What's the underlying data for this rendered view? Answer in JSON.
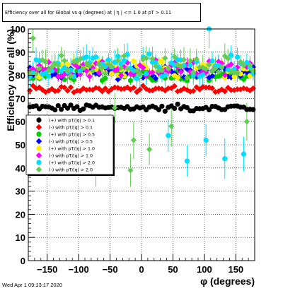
{
  "title": "Efficiency over all for Global vs φ (degrees) at | η | <= 1.0 at pT > 0.11",
  "date_stamp": "Wed Apr  1 09:13:17 2020",
  "chart_data": {
    "type": "scatter",
    "title": "Efficiency over all for Global vs φ (degrees) at | η | <= 1.0 at pT > 0.11",
    "xlabel": "φ (degrees)",
    "ylabel": "Efficiency over all (%)",
    "xlim": [
      -180,
      180
    ],
    "ylim": [
      0,
      100
    ],
    "x_ticks": [
      -150,
      -100,
      -50,
      0,
      50,
      100,
      150
    ],
    "y_ticks": [
      0,
      10,
      20,
      30,
      40,
      50,
      60,
      70,
      80,
      90,
      100
    ],
    "grid": true,
    "legend_position": "left-middle",
    "n_bins": 72,
    "series": [
      {
        "name": "(+) with pT/|q| > 0.1",
        "color": "#000000",
        "marker": "circle",
        "mean": 66,
        "spread": 1.2,
        "err": 0.7
      },
      {
        "name": "(-) with pT/|q| > 0.1",
        "color": "#ff0000",
        "marker": "diamond",
        "mean": 74,
        "spread": 1.2,
        "err": 0.7
      },
      {
        "name": "(+) with pT/|q| > 0.5",
        "color": "#00cc00",
        "marker": "circle",
        "mean": 80.5,
        "spread": 2.4,
        "err": 1.4
      },
      {
        "name": "(-) with pT/|q| > 0.5",
        "color": "#0000ff",
        "marker": "diamond",
        "mean": 81,
        "spread": 2.4,
        "err": 1.4
      },
      {
        "name": "(+) with pT/|q| > 1.0",
        "color": "#ffee00",
        "marker": "circle",
        "mean": 82.5,
        "spread": 3.2,
        "err": 2.2
      },
      {
        "name": "(-) with pT/|q| > 1.0",
        "color": "#ff00ff",
        "marker": "diamond",
        "mean": 83,
        "spread": 3.2,
        "err": 2.2
      },
      {
        "name": "(+) with pT/|q| > 2.0",
        "color": "#00ddff",
        "marker": "circle",
        "mean": 84,
        "spread": 4.5,
        "err": 4.0
      },
      {
        "name": "(-) with pT/|q| > 2.0",
        "color": "#66cc55",
        "marker": "diamond",
        "mean": 84,
        "spread": 4.5,
        "err": 4.0
      }
    ],
    "outliers": [
      {
        "series": 7,
        "x": -172.5,
        "y": 96
      },
      {
        "series": 7,
        "x": -72.5,
        "y": 38
      },
      {
        "series": 7,
        "x": -17.5,
        "y": 39
      },
      {
        "series": 7,
        "x": -12.5,
        "y": 52
      },
      {
        "series": 7,
        "x": -42.5,
        "y": 66
      },
      {
        "series": 6,
        "x": 72.5,
        "y": 43
      },
      {
        "series": 6,
        "x": 102.5,
        "y": 52
      },
      {
        "series": 6,
        "x": 132.5,
        "y": 44
      },
      {
        "series": 6,
        "x": 162.5,
        "y": 46
      },
      {
        "series": 6,
        "x": 107.5,
        "y": 100
      },
      {
        "series": 7,
        "x": 47.5,
        "y": 58
      },
      {
        "series": 7,
        "x": 167.5,
        "y": 60
      },
      {
        "series": 6,
        "x": 42.5,
        "y": 54
      },
      {
        "series": 7,
        "x": 12.5,
        "y": 48
      }
    ]
  }
}
